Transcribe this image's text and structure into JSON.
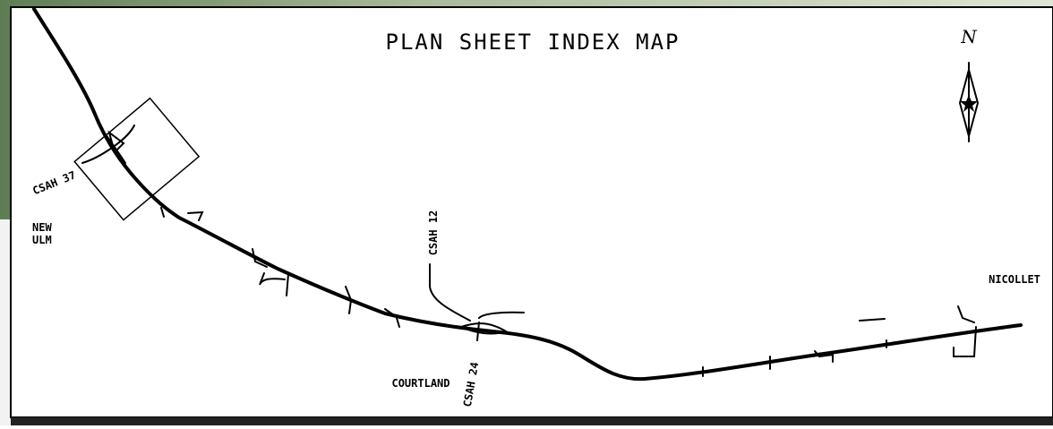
{
  "title": "PLAN SHEET INDEX MAP",
  "north_arrow": "N",
  "labels": {
    "csah37": "CSAH 37",
    "new": "NEW",
    "ulm": "ULM",
    "csah12": "CSAH 12",
    "nicollet": "NICOLLET",
    "courtland": "COURTLAND",
    "csah24": "CSAH 24"
  }
}
